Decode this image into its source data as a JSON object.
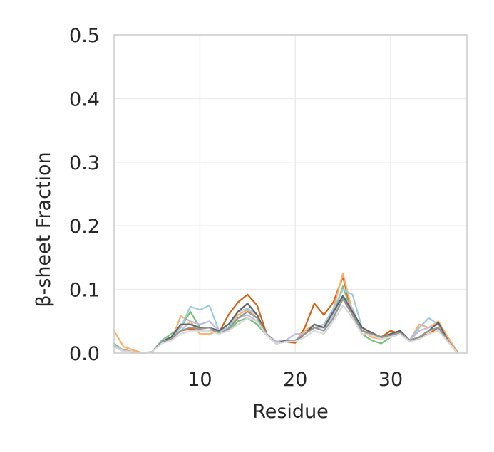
{
  "chart_data": {
    "type": "line",
    "xlabel": "Residue",
    "ylabel": "β-sheet Fraction",
    "xlim": [
      1,
      38
    ],
    "ylim": [
      0,
      0.5
    ],
    "xticks": [
      10,
      20,
      30
    ],
    "xtick_labels": [
      "10",
      "20",
      "30"
    ],
    "yticks": [
      0.0,
      0.1,
      0.2,
      0.3,
      0.4,
      0.5
    ],
    "ytick_labels": [
      "0.0",
      "0.1",
      "0.2",
      "0.3",
      "0.4",
      "0.5"
    ],
    "grid": true,
    "x": [
      1,
      2,
      3,
      4,
      5,
      6,
      7,
      8,
      9,
      10,
      11,
      12,
      13,
      14,
      15,
      16,
      17,
      18,
      19,
      20,
      21,
      22,
      23,
      24,
      25,
      26,
      27,
      28,
      29,
      30,
      31,
      32,
      33,
      34,
      35,
      36,
      37
    ],
    "series": [
      {
        "color": "#d95f0e",
        "values": [
          0.01,
          0.005,
          0.002,
          0.0,
          0.002,
          0.02,
          0.025,
          0.035,
          0.038,
          0.036,
          0.035,
          0.032,
          0.06,
          0.08,
          0.092,
          0.075,
          0.03,
          0.015,
          0.018,
          0.016,
          0.04,
          0.078,
          0.06,
          0.08,
          0.12,
          0.06,
          0.035,
          0.03,
          0.025,
          0.035,
          0.03,
          0.02,
          0.025,
          0.03,
          0.04,
          0.02,
          0.0
        ]
      },
      {
        "color": "#fdae6b",
        "values": [
          0.035,
          0.01,
          0.005,
          0.0,
          0.002,
          0.018,
          0.02,
          0.058,
          0.05,
          0.03,
          0.03,
          0.035,
          0.04,
          0.06,
          0.068,
          0.055,
          0.03,
          0.018,
          0.02,
          0.018,
          0.035,
          0.045,
          0.04,
          0.07,
          0.125,
          0.065,
          0.035,
          0.025,
          0.022,
          0.03,
          0.035,
          0.02,
          0.045,
          0.04,
          0.05,
          0.025,
          0.002
        ]
      },
      {
        "color": "#74c476",
        "values": [
          0.015,
          0.004,
          0.002,
          0.0,
          0.002,
          0.02,
          0.03,
          0.04,
          0.065,
          0.04,
          0.04,
          0.032,
          0.035,
          0.05,
          0.055,
          0.045,
          0.028,
          0.015,
          0.018,
          0.02,
          0.03,
          0.045,
          0.04,
          0.06,
          0.105,
          0.06,
          0.03,
          0.02,
          0.015,
          0.025,
          0.03,
          0.02,
          0.025,
          0.035,
          0.04,
          0.02,
          0.0
        ]
      },
      {
        "color": "#9ecae1",
        "values": [
          0.012,
          0.004,
          0.002,
          0.0,
          0.002,
          0.02,
          0.025,
          0.04,
          0.073,
          0.068,
          0.075,
          0.035,
          0.04,
          0.065,
          0.07,
          0.06,
          0.03,
          0.018,
          0.02,
          0.02,
          0.03,
          0.04,
          0.045,
          0.07,
          0.1,
          0.092,
          0.04,
          0.03,
          0.025,
          0.03,
          0.035,
          0.02,
          0.04,
          0.055,
          0.045,
          0.02,
          0.0
        ]
      },
      {
        "color": "#bcbddc",
        "values": [
          0.012,
          0.004,
          0.002,
          0.0,
          0.002,
          0.018,
          0.025,
          0.035,
          0.05,
          0.045,
          0.05,
          0.035,
          0.038,
          0.055,
          0.06,
          0.05,
          0.03,
          0.018,
          0.02,
          0.03,
          0.03,
          0.04,
          0.04,
          0.06,
          0.09,
          0.07,
          0.035,
          0.03,
          0.025,
          0.03,
          0.035,
          0.02,
          0.035,
          0.04,
          0.045,
          0.02,
          0.0
        ]
      },
      {
        "color": "#636363",
        "values": [
          0.01,
          0.003,
          0.002,
          0.0,
          0.002,
          0.018,
          0.025,
          0.045,
          0.045,
          0.04,
          0.04,
          0.035,
          0.045,
          0.065,
          0.078,
          0.06,
          0.03,
          0.015,
          0.02,
          0.018,
          0.03,
          0.045,
          0.04,
          0.065,
          0.09,
          0.065,
          0.04,
          0.032,
          0.025,
          0.03,
          0.035,
          0.02,
          0.025,
          0.035,
          0.048,
          0.02,
          0.0
        ]
      },
      {
        "color": "#969696",
        "values": [
          0.01,
          0.003,
          0.002,
          0.0,
          0.002,
          0.018,
          0.022,
          0.035,
          0.04,
          0.038,
          0.04,
          0.03,
          0.038,
          0.055,
          0.065,
          0.055,
          0.03,
          0.015,
          0.018,
          0.02,
          0.03,
          0.04,
          0.035,
          0.055,
          0.085,
          0.06,
          0.035,
          0.03,
          0.025,
          0.028,
          0.032,
          0.02,
          0.025,
          0.035,
          0.04,
          0.02,
          0.0
        ]
      },
      {
        "color": "#d9d9d9",
        "values": [
          0.01,
          0.003,
          0.002,
          0.0,
          0.002,
          0.015,
          0.02,
          0.03,
          0.035,
          0.035,
          0.035,
          0.03,
          0.035,
          0.045,
          0.055,
          0.05,
          0.028,
          0.015,
          0.018,
          0.018,
          0.025,
          0.035,
          0.03,
          0.05,
          0.075,
          0.055,
          0.03,
          0.028,
          0.022,
          0.025,
          0.03,
          0.018,
          0.022,
          0.03,
          0.035,
          0.018,
          0.0
        ]
      }
    ]
  }
}
